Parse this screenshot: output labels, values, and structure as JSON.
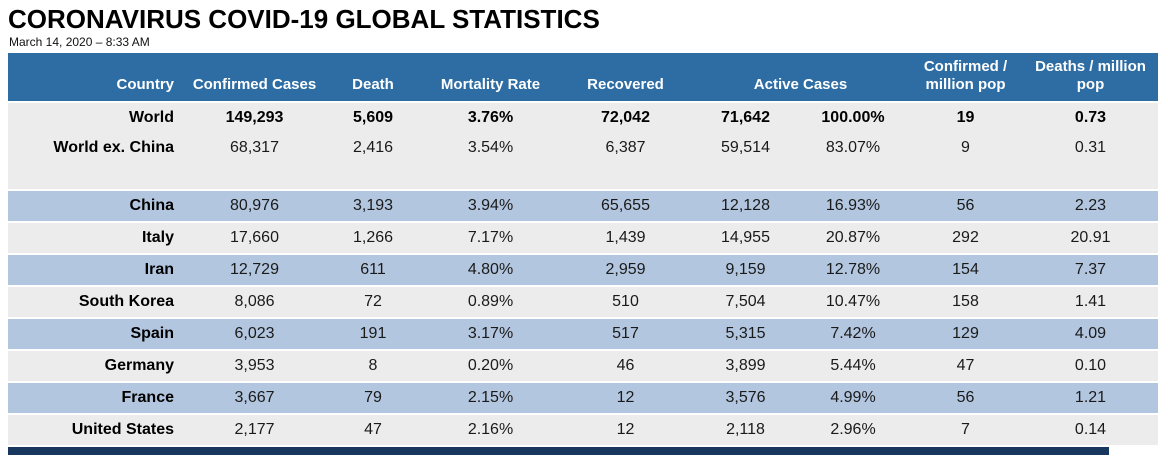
{
  "title": "CORONAVIRUS COVID-19 GLOBAL STATISTICS",
  "timestamp": "March 14, 2020 – 8:33 AM",
  "colors": {
    "header_bg": "#2E6DA4",
    "row_gray": "#ECECEC",
    "row_blue": "#B3C6DF",
    "bottom_bar": "#17375E",
    "header_text": "#FFFFFF"
  },
  "chart_data": {
    "type": "table",
    "title": "CORONAVIRUS COVID-19 GLOBAL STATISTICS",
    "subtitle": "March 14, 2020 – 8:33 AM",
    "header_display": [
      {
        "label": "Country",
        "colspan": 1,
        "class": "country-h"
      },
      {
        "label": "Confirmed Cases",
        "colspan": 1
      },
      {
        "label": "Death",
        "colspan": 1
      },
      {
        "label": "Mortality Rate",
        "colspan": 1
      },
      {
        "label": "Recovered",
        "colspan": 1
      },
      {
        "label": "Active Cases",
        "colspan": 2
      },
      {
        "label": "Confirmed / million pop",
        "colspan": 1
      },
      {
        "label": "Deaths / million pop",
        "colspan": 1
      }
    ],
    "columns": [
      "Country",
      "Confirmed Cases",
      "Death",
      "Mortality Rate",
      "Recovered",
      "Active Cases",
      "Active Cases %",
      "Confirmed / million pop",
      "Deaths / million pop"
    ],
    "rows": [
      {
        "style": "gray",
        "bold": true,
        "separator": false,
        "cells": [
          "World",
          "149,293",
          "5,609",
          "3.76%",
          "72,042",
          "71,642",
          "100.00%",
          "19",
          "0.73"
        ]
      },
      {
        "style": "gray",
        "bold": false,
        "separator": false,
        "cells": [
          "World ex. China",
          "68,317",
          "2,416",
          "3.54%",
          "6,387",
          "59,514",
          "83.07%",
          "9",
          "0.31"
        ]
      },
      {
        "style": "gray",
        "blank": true,
        "separator": true
      },
      {
        "style": "blue",
        "bold": false,
        "separator": true,
        "cells": [
          "China",
          "80,976",
          "3,193",
          "3.94%",
          "65,655",
          "12,128",
          "16.93%",
          "56",
          "2.23"
        ]
      },
      {
        "style": "gray",
        "bold": false,
        "separator": true,
        "cells": [
          "Italy",
          "17,660",
          "1,266",
          "7.17%",
          "1,439",
          "14,955",
          "20.87%",
          "292",
          "20.91"
        ]
      },
      {
        "style": "blue",
        "bold": false,
        "separator": true,
        "cells": [
          "Iran",
          "12,729",
          "611",
          "4.80%",
          "2,959",
          "9,159",
          "12.78%",
          "154",
          "7.37"
        ]
      },
      {
        "style": "gray",
        "bold": false,
        "separator": true,
        "cells": [
          "South Korea",
          "8,086",
          "72",
          "0.89%",
          "510",
          "7,504",
          "10.47%",
          "158",
          "1.41"
        ]
      },
      {
        "style": "blue",
        "bold": false,
        "separator": true,
        "cells": [
          "Spain",
          "6,023",
          "191",
          "3.17%",
          "517",
          "5,315",
          "7.42%",
          "129",
          "4.09"
        ]
      },
      {
        "style": "gray",
        "bold": false,
        "separator": true,
        "cells": [
          "Germany",
          "3,953",
          "8",
          "0.20%",
          "46",
          "3,899",
          "5.44%",
          "47",
          "0.10"
        ]
      },
      {
        "style": "blue",
        "bold": false,
        "separator": true,
        "cells": [
          "France",
          "3,667",
          "79",
          "2.15%",
          "12",
          "3,576",
          "4.99%",
          "56",
          "1.21"
        ]
      },
      {
        "style": "gray",
        "bold": false,
        "separator": false,
        "cells": [
          "United States",
          "2,177",
          "47",
          "2.16%",
          "12",
          "2,118",
          "2.96%",
          "7",
          "0.14"
        ]
      }
    ]
  }
}
